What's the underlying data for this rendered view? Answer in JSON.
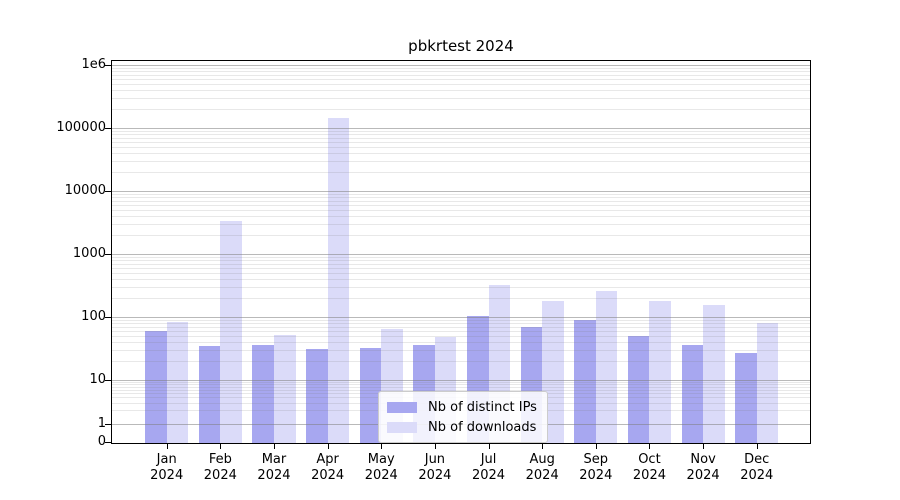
{
  "chart_data": {
    "type": "bar",
    "title": "pbkrtest 2024",
    "x_categories": [
      {
        "month": "Jan",
        "year": "2024"
      },
      {
        "month": "Feb",
        "year": "2024"
      },
      {
        "month": "Mar",
        "year": "2024"
      },
      {
        "month": "Apr",
        "year": "2024"
      },
      {
        "month": "May",
        "year": "2024"
      },
      {
        "month": "Jun",
        "year": "2024"
      },
      {
        "month": "Jul",
        "year": "2024"
      },
      {
        "month": "Aug",
        "year": "2024"
      },
      {
        "month": "Sep",
        "year": "2024"
      },
      {
        "month": "Oct",
        "year": "2024"
      },
      {
        "month": "Nov",
        "year": "2024"
      },
      {
        "month": "Dec",
        "year": "2024"
      }
    ],
    "series": [
      {
        "name": "Nb of distinct IPs",
        "color": "#a7a7f0",
        "values": [
          60,
          35,
          36,
          31,
          32,
          36,
          103,
          69,
          90,
          50,
          36,
          27
        ]
      },
      {
        "name": "Nb of downloads",
        "color": "#dbdbf9",
        "values": [
          82,
          3300,
          52,
          145000,
          65,
          48,
          320,
          177,
          260,
          180,
          155,
          79
        ]
      }
    ],
    "y_axis": {
      "scale": "log with 0 baseline (symlog)",
      "tick_values": [
        0,
        1,
        10,
        100,
        1000,
        10000,
        100000,
        1000000
      ],
      "tick_labels": [
        "0",
        "1",
        "10",
        "100",
        "1000",
        "10000",
        "100000",
        "1e6"
      ],
      "range_top_label": "1e6"
    },
    "grid": {
      "major": true,
      "minor": true
    },
    "legend": {
      "position": "lower center"
    }
  },
  "colors": {
    "background": "#ffffff",
    "spine": "#000000",
    "major_grid": "rgba(128,128,128,0.55)",
    "minor_grid": "rgba(128,128,128,0.18)",
    "text": "#000000"
  }
}
